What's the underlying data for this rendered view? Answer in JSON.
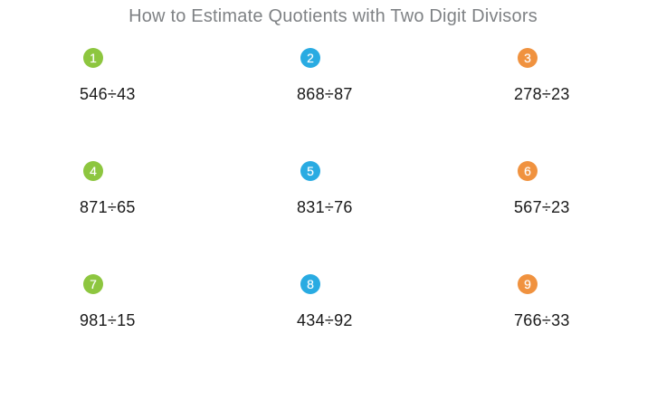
{
  "header": {
    "title": "How to Estimate Quotients with Two Digit Divisors"
  },
  "colors": {
    "green": "#8dc63f",
    "blue": "#29abe2",
    "orange": "#f0923f",
    "title_text": "#7f8285",
    "problem_text": "#1a1a1a",
    "background": "#ffffff"
  },
  "problems": [
    {
      "number": "1",
      "expression": "546÷43",
      "badge_color": "green"
    },
    {
      "number": "2",
      "expression": "868÷87",
      "badge_color": "blue"
    },
    {
      "number": "3",
      "expression": "278÷23",
      "badge_color": "orange"
    },
    {
      "number": "4",
      "expression": "871÷65",
      "badge_color": "green"
    },
    {
      "number": "5",
      "expression": "831÷76",
      "badge_color": "blue"
    },
    {
      "number": "6",
      "expression": "567÷23",
      "badge_color": "orange"
    },
    {
      "number": "7",
      "expression": "981÷15",
      "badge_color": "green"
    },
    {
      "number": "8",
      "expression": "434÷92",
      "badge_color": "blue"
    },
    {
      "number": "9",
      "expression": "766÷33",
      "badge_color": "orange"
    }
  ]
}
